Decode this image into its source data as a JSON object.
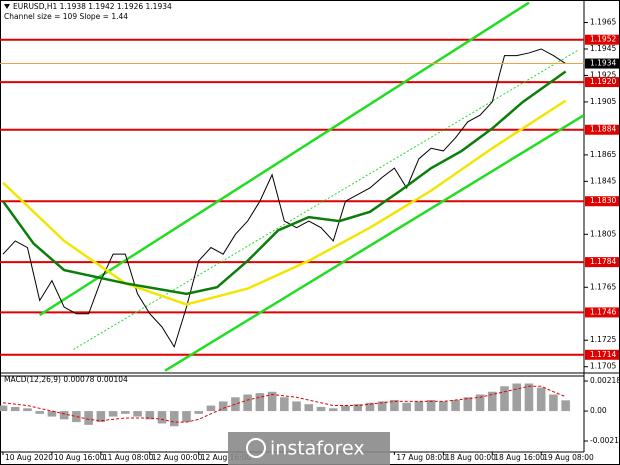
{
  "watermark": "instaforex",
  "chart_data": [
    {
      "type": "line",
      "title": "EURUSD,H1  1.1938 1.1942 1.1926 1.1934",
      "subtitle": "Channel size = 109 Slope = 1.44",
      "xlim": [
        0,
        190
      ],
      "ylim": [
        1.1701,
        1.1982
      ],
      "yticks": [
        1.1965,
        1.1945,
        1.1925,
        1.1905,
        1.1865,
        1.1845,
        1.1805,
        1.1765,
        1.1725,
        1.1705
      ],
      "series": [
        {
          "color": "#000000",
          "x": [
            0,
            4,
            8,
            12,
            16,
            20,
            24,
            28,
            32,
            36,
            40,
            44,
            48,
            52,
            56,
            60,
            64,
            68,
            72,
            76,
            80,
            84,
            88,
            92,
            96,
            100,
            104,
            108,
            112,
            116,
            120,
            124,
            128,
            132,
            136,
            140,
            144,
            148,
            152,
            156,
            160,
            164,
            168,
            172,
            176,
            180,
            184
          ],
          "values": [
            1.179,
            1.18,
            1.1795,
            1.1755,
            1.177,
            1.175,
            1.1745,
            1.1745,
            1.177,
            1.179,
            1.179,
            1.176,
            1.1745,
            1.1735,
            1.172,
            1.175,
            1.1785,
            1.1795,
            1.179,
            1.1805,
            1.1815,
            1.183,
            1.185,
            1.1815,
            1.181,
            1.1815,
            1.181,
            1.18,
            1.183,
            1.1835,
            1.184,
            1.1848,
            1.1855,
            1.184,
            1.1862,
            1.187,
            1.1868,
            1.1878,
            1.189,
            1.1895,
            1.1905,
            1.194,
            1.194,
            1.1942,
            1.1945,
            1.194,
            1.1934
          ]
        },
        {
          "color": "#f2e600",
          "x": [
            0,
            20,
            40,
            60,
            80,
            100,
            120,
            140,
            160,
            184
          ],
          "values": [
            1.1844,
            1.18,
            1.1768,
            1.1752,
            1.1764,
            1.1785,
            1.181,
            1.1838,
            1.187,
            1.1906
          ]
        },
        {
          "color": "#0a7d0a",
          "x": [
            0,
            10,
            20,
            40,
            60,
            70,
            80,
            90,
            100,
            110,
            120,
            130,
            140,
            150,
            160,
            170,
            184
          ],
          "values": [
            1.183,
            1.1798,
            1.1778,
            1.1768,
            1.176,
            1.1765,
            1.1785,
            1.1808,
            1.1818,
            1.1815,
            1.1822,
            1.1838,
            1.1855,
            1.1868,
            1.1885,
            1.1905,
            1.1928
          ]
        }
      ],
      "channel_color": "#22dd22",
      "channel": [
        {
          "x": [
            12,
            172
          ],
          "values": [
            1.1744,
            1.198
          ]
        },
        {
          "x": [
            53,
            190
          ],
          "values": [
            1.1702,
            1.1895
          ]
        },
        {
          "x": [
            23,
            188
          ],
          "values": [
            1.1718,
            1.1944
          ]
        }
      ],
      "level_color": "#e00000",
      "levels": [
        1.1952,
        {
          "value": 1.192,
          "label": "1.1920"
        },
        1.1884,
        {
          "value": 1.183,
          "label": "1.1830"
        },
        1.1784,
        1.1746,
        1.1714
      ],
      "current": 1.1934
    },
    {
      "type": "bar",
      "title": "MACD(12,26,9) 0.00078 0.00104",
      "xlim": [
        0,
        190
      ],
      "ylim": [
        -0.00217,
        0.00218
      ],
      "yticks": [
        0.00218,
        {
          "value": 0,
          "label": "0.00"
        },
        -0.00217
      ],
      "xticks": [
        {
          "value": 0,
          "label": "10 Aug 2020"
        },
        {
          "value": 16,
          "label": "10 Aug 16:00"
        },
        {
          "value": 32,
          "label": "11 Aug 08:00"
        },
        {
          "value": 48,
          "label": "12 Aug 00:00"
        },
        {
          "value": 64,
          "label": "12 Aug 16:00"
        },
        {
          "value": 128,
          "label": "17 Aug 08:00"
        },
        {
          "value": 144,
          "label": "18 Aug 00:00"
        },
        {
          "value": 160,
          "label": "18 Aug 16:00"
        },
        {
          "value": 176,
          "label": "19 Aug 08:00"
        }
      ],
      "color": "#a0a0a0",
      "x": [
        0,
        4,
        8,
        12,
        16,
        20,
        24,
        28,
        32,
        36,
        40,
        44,
        48,
        52,
        56,
        60,
        64,
        68,
        72,
        76,
        80,
        84,
        88,
        92,
        96,
        100,
        104,
        108,
        112,
        116,
        120,
        124,
        128,
        132,
        136,
        140,
        144,
        148,
        152,
        156,
        160,
        164,
        168,
        172,
        176,
        180,
        184
      ],
      "values": [
        0.0004,
        0.0003,
        0.0002,
        -0.0002,
        -0.0004,
        -0.0006,
        -0.0008,
        -0.001,
        -0.0008,
        -0.0004,
        -0.0002,
        -0.0004,
        -0.0006,
        -0.0009,
        -0.0011,
        -0.0008,
        -0.0002,
        0.0004,
        0.0007,
        0.001,
        0.0012,
        0.0013,
        0.0014,
        0.001,
        0.0007,
        0.0005,
        0.0003,
        0.0002,
        0.0004,
        0.0005,
        0.0006,
        0.0007,
        0.0008,
        0.0006,
        0.0007,
        0.0008,
        0.0007,
        0.0008,
        0.001,
        0.0012,
        0.0014,
        0.0018,
        0.002,
        0.002,
        0.0017,
        0.0012,
        0.00078
      ],
      "signal": {
        "color": "#e00000",
        "values": [
          0.0006,
          0.0005,
          0.0004,
          0.0002,
          0,
          -0.0002,
          -0.0004,
          -0.0006,
          -0.0007,
          -0.0006,
          -0.0005,
          -0.0005,
          -0.0005,
          -0.0006,
          -0.0008,
          -0.0008,
          -0.0006,
          -0.0002,
          0.0002,
          0.0005,
          0.0008,
          0.001,
          0.0012,
          0.0011,
          0.001,
          0.0008,
          0.0006,
          0.0004,
          0.0004,
          0.0004,
          0.0005,
          0.0006,
          0.0007,
          0.0007,
          0.0007,
          0.0007,
          0.0007,
          0.0008,
          0.0009,
          0.001,
          0.0012,
          0.0014,
          0.0016,
          0.0018,
          0.0018,
          0.0014,
          0.00104
        ]
      }
    }
  ]
}
